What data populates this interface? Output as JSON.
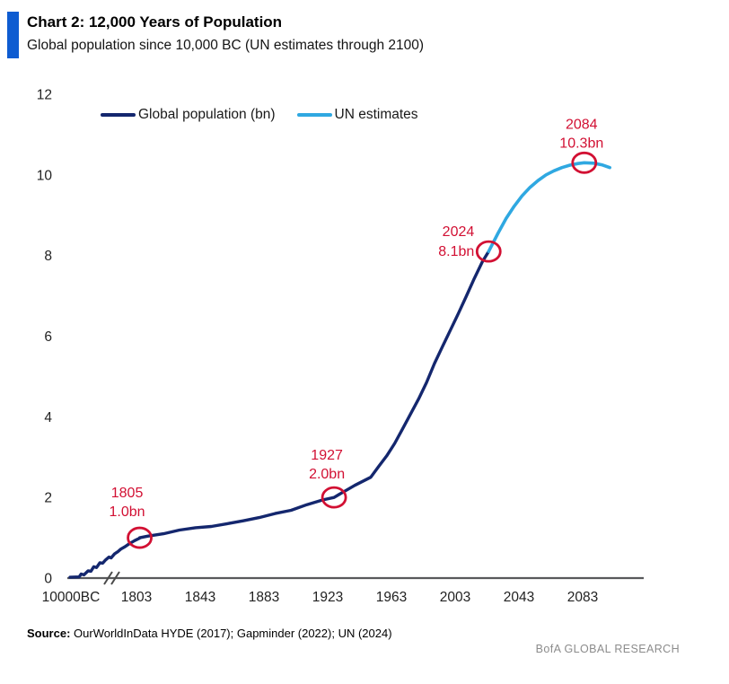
{
  "header": {
    "title": "Chart 2: 12,000 Years of Population",
    "subtitle": "Global population since 10,000 BC (UN estimates through 2100)",
    "accent_color": "#0e5cd1"
  },
  "legend": [
    {
      "label": "Global population (bn)",
      "color": "#14276e"
    },
    {
      "label": "UN estimates",
      "color": "#2fa8e1"
    }
  ],
  "chart_data": {
    "type": "line",
    "title": "Chart 2: 12,000 Years of Population",
    "subtitle": "Global population since 10,000 BC (UN estimates through 2100)",
    "xlabel": "",
    "ylabel": "",
    "ylim": [
      0,
      12
    ],
    "yticks": [
      0,
      2,
      4,
      6,
      8,
      10,
      12
    ],
    "xtick_labels": [
      "10000BC",
      "1803",
      "1843",
      "1883",
      "1923",
      "1963",
      "2003",
      "2043",
      "2083"
    ],
    "axis_break_after_first_tick": true,
    "grid": false,
    "legend_position": "top",
    "axis_color": "#58595b",
    "annotation_color": "#d21033",
    "series": [
      {
        "name": "Global population (bn)",
        "color": "#14276e",
        "points": [
          [
            1805,
            1.0
          ],
          [
            1810,
            1.04
          ],
          [
            1820,
            1.1
          ],
          [
            1830,
            1.19
          ],
          [
            1840,
            1.25
          ],
          [
            1850,
            1.28
          ],
          [
            1860,
            1.35
          ],
          [
            1870,
            1.42
          ],
          [
            1880,
            1.5
          ],
          [
            1890,
            1.6
          ],
          [
            1900,
            1.68
          ],
          [
            1910,
            1.82
          ],
          [
            1920,
            1.94
          ],
          [
            1927,
            2.0
          ],
          [
            1930,
            2.07
          ],
          [
            1940,
            2.3
          ],
          [
            1950,
            2.5
          ],
          [
            1955,
            2.77
          ],
          [
            1960,
            3.03
          ],
          [
            1965,
            3.34
          ],
          [
            1970,
            3.7
          ],
          [
            1975,
            4.07
          ],
          [
            1980,
            4.44
          ],
          [
            1985,
            4.85
          ],
          [
            1990,
            5.32
          ],
          [
            1995,
            5.74
          ],
          [
            2000,
            6.15
          ],
          [
            2005,
            6.56
          ],
          [
            2010,
            6.99
          ],
          [
            2015,
            7.43
          ],
          [
            2020,
            7.84
          ],
          [
            2024,
            8.1
          ]
        ]
      },
      {
        "name": "UN estimates",
        "color": "#2fa8e1",
        "points": [
          [
            2024,
            8.1
          ],
          [
            2030,
            8.56
          ],
          [
            2035,
            8.92
          ],
          [
            2040,
            9.22
          ],
          [
            2045,
            9.48
          ],
          [
            2050,
            9.69
          ],
          [
            2055,
            9.86
          ],
          [
            2060,
            10.0
          ],
          [
            2065,
            10.1
          ],
          [
            2070,
            10.18
          ],
          [
            2075,
            10.24
          ],
          [
            2080,
            10.28
          ],
          [
            2084,
            10.3
          ],
          [
            2090,
            10.29
          ],
          [
            2095,
            10.25
          ],
          [
            2100,
            10.18
          ]
        ]
      }
    ],
    "pre_axis_segment": {
      "note": "compressed non-linear span 10,000 BC to ~1800, position 0-1 across the broken axis region",
      "points": [
        [
          0,
          0.02
        ],
        [
          0.13,
          0.03
        ],
        [
          0.16,
          0.1
        ],
        [
          0.2,
          0.08
        ],
        [
          0.26,
          0.18
        ],
        [
          0.3,
          0.17
        ],
        [
          0.34,
          0.28
        ],
        [
          0.38,
          0.26
        ],
        [
          0.43,
          0.38
        ],
        [
          0.47,
          0.37
        ],
        [
          0.51,
          0.45
        ],
        [
          0.56,
          0.52
        ],
        [
          0.59,
          0.5
        ],
        [
          0.64,
          0.6
        ],
        [
          0.69,
          0.66
        ],
        [
          0.73,
          0.72
        ],
        [
          0.79,
          0.78
        ],
        [
          0.85,
          0.85
        ],
        [
          0.93,
          0.93
        ],
        [
          1,
          0.99
        ]
      ]
    },
    "annotations": [
      {
        "year": 1805,
        "value": 1.0,
        "line1": "1805",
        "line2": "1.0bn",
        "anchor": "above",
        "dx": -14,
        "dy1": -45,
        "dy2": -24
      },
      {
        "year": 1927,
        "value": 2.0,
        "line1": "1927",
        "line2": "2.0bn",
        "anchor": "above",
        "dx": -8,
        "dy1": -42,
        "dy2": -21
      },
      {
        "year": 2024,
        "value": 8.1,
        "line1": "2024",
        "line2": "8.1bn",
        "anchor": "left",
        "dx": -16,
        "dy1": -17,
        "dy2": 5
      },
      {
        "year": 2084,
        "value": 10.3,
        "line1": "2084",
        "line2": "10.3bn",
        "anchor": "above",
        "dx": -3,
        "dy1": -38,
        "dy2": -17
      }
    ]
  },
  "footer": {
    "source_label": "Source:",
    "source_text": " OurWorldInData HYDE (2017); Gapminder (2022); UN (2024)",
    "brand": "BofA GLOBAL RESEARCH"
  }
}
